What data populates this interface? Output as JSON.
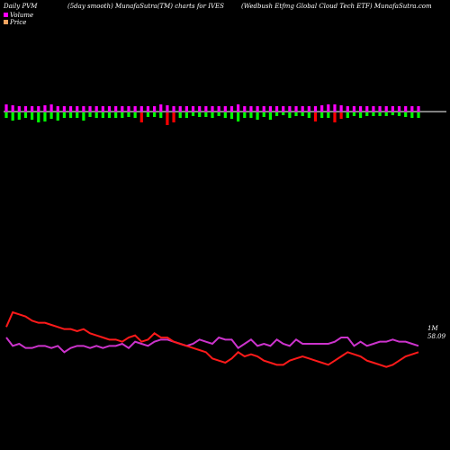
{
  "header": {
    "left": "Daily PVM",
    "center": "(5day smooth) MunafaSutra(TM) charts for IVES",
    "right": "(Wedbush Etfmg Global Cloud Tech ETF) MunafaSutra.com"
  },
  "legend": {
    "volume_label": "Volume",
    "price_label": "Price",
    "volume_color": "#ff00ff",
    "price_color": "#f4a460"
  },
  "colors": {
    "background": "#000000",
    "axis_line": "#ffffff",
    "up_bar": "#ff00ff",
    "down_bar_green": "#00ff00",
    "down_bar_red": "#ff0000",
    "volume_line": "#cc33cc",
    "price_line": "#ff1a1a"
  },
  "chart_data": {
    "type": "bar+line",
    "volume_bars": {
      "up_heights": [
        8,
        7,
        6,
        6,
        6,
        6,
        7,
        8,
        6,
        6,
        6,
        6,
        6,
        6,
        6,
        6,
        6,
        6,
        6,
        6,
        6,
        6,
        6,
        6,
        8,
        7,
        6,
        6,
        6,
        6,
        6,
        6,
        6,
        6,
        6,
        6,
        8,
        6,
        6,
        6,
        6,
        6,
        6,
        6,
        6,
        6,
        6,
        6,
        6,
        7,
        8,
        8,
        7,
        6,
        6,
        6,
        6,
        6,
        6,
        6,
        6,
        6,
        6,
        6,
        6
      ],
      "down_heights": [
        6,
        9,
        8,
        6,
        8,
        11,
        10,
        7,
        9,
        6,
        6,
        6,
        9,
        5,
        6,
        6,
        6,
        6,
        6,
        5,
        6,
        11,
        5,
        5,
        6,
        14,
        11,
        6,
        6,
        4,
        5,
        5,
        6,
        4,
        6,
        7,
        10,
        6,
        6,
        8,
        5,
        8,
        4,
        3,
        6,
        4,
        4,
        6,
        10,
        6,
        6,
        11,
        7,
        6,
        4,
        6,
        4,
        4,
        4,
        4,
        3,
        4,
        5,
        6,
        6
      ],
      "down_color_index": [
        "g",
        "g",
        "g",
        "g",
        "g",
        "g",
        "g",
        "g",
        "g",
        "g",
        "g",
        "g",
        "g",
        "g",
        "g",
        "g",
        "g",
        "g",
        "g",
        "g",
        "g",
        "r",
        "g",
        "g",
        "g",
        "r",
        "r",
        "g",
        "g",
        "g",
        "g",
        "g",
        "g",
        "g",
        "g",
        "g",
        "g",
        "g",
        "g",
        "g",
        "g",
        "g",
        "g",
        "g",
        "g",
        "g",
        "g",
        "g",
        "r",
        "g",
        "g",
        "r",
        "r",
        "g",
        "g",
        "g",
        "g",
        "g",
        "g",
        "g",
        "g",
        "g",
        "g",
        "g",
        "g"
      ]
    },
    "volume_line": [
      45,
      41,
      42,
      40,
      40,
      41,
      41,
      40,
      41,
      38,
      40,
      41,
      41,
      40,
      41,
      40,
      41,
      41,
      42,
      40,
      43,
      42,
      41,
      43,
      44,
      44,
      43,
      42,
      41,
      42,
      44,
      43,
      42,
      45,
      44,
      44,
      40,
      42,
      44,
      41,
      42,
      41,
      44,
      42,
      41,
      44,
      42,
      42,
      42,
      42,
      42,
      43,
      45,
      45,
      41,
      43,
      41,
      42,
      43,
      43,
      44,
      43,
      43,
      42,
      41
    ],
    "price_line": [
      40,
      33,
      34,
      35,
      37,
      38,
      38,
      39,
      40,
      41,
      41,
      42,
      41,
      43,
      44,
      45,
      46,
      46,
      47,
      45,
      44,
      47,
      46,
      43,
      45,
      45,
      47,
      48,
      49,
      50,
      51,
      52,
      55,
      56,
      57,
      55,
      52,
      54,
      53,
      54,
      56,
      57,
      58,
      58,
      56,
      55,
      54,
      55,
      56,
      57,
      58,
      56,
      54,
      52,
      53,
      54,
      56,
      57,
      58,
      59,
      58,
      56,
      54,
      53,
      52
    ],
    "last_volume_label": "1M",
    "last_price_label": "58.09"
  }
}
